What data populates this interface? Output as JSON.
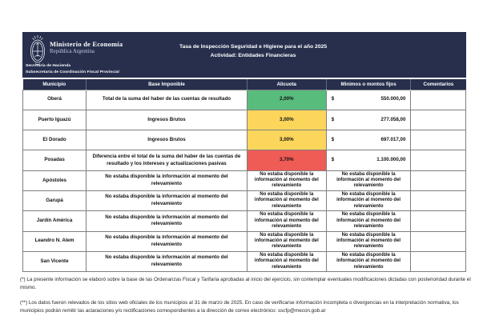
{
  "header": {
    "logo": "argentina-coat-of-arms",
    "ministry": "Ministerio de Economía",
    "country": "República Argentina",
    "secretariat": "Secretaría de Hacienda",
    "subsecretariat": "Subsecretaría de Coordinación Fiscal Provincial",
    "title": "Tasa de Inspección Seguridad e Higiene para el año 2025",
    "subtitle": "Actividad: Entidades Financieras"
  },
  "colors": {
    "navy": "#272F4D",
    "green": "#58BC7C",
    "yellow": "#FBD65B",
    "red": "#EF5B55",
    "border": "#7F7F7F"
  },
  "table": {
    "columns": [
      "Municipio",
      "Base Imponible",
      "Alicuota",
      "Minimos o montos fijos",
      "Comentarios"
    ],
    "not_available": "No estaba disponible la información al momento del relevamiento",
    "rows": [
      {
        "municipio": "Oberá",
        "base": "Total de la suma del haber de las cuentas de resultado",
        "alicuota": "2,00%",
        "alicuota_color": "green",
        "currency": "$",
        "monto": "550.000,00",
        "comentarios": ""
      },
      {
        "municipio": "Puerto Iguazú",
        "base": "Ingresos Brutos",
        "alicuota": "3,00%",
        "alicuota_color": "yellow",
        "currency": "$",
        "monto": "277.058,00",
        "comentarios": ""
      },
      {
        "municipio": "El Dorado",
        "base": "Ingresos Brutos",
        "alicuota": "3,00%",
        "alicuota_color": "yellow",
        "currency": "$",
        "monto": "697.017,00",
        "comentarios": ""
      },
      {
        "municipio": "Posadas",
        "base": "Diferencia entre el total de la suma del haber de las cuentas de resultado y los intereses y actualizaciones pasivas",
        "alicuota": "3,70%",
        "alicuota_color": "red",
        "currency": "$",
        "monto": "1.100.000,00",
        "comentarios": ""
      },
      {
        "municipio": "Apóstoles",
        "na": true,
        "comentarios": ""
      },
      {
        "municipio": "Garupá",
        "na": true,
        "comentarios": ""
      },
      {
        "municipio": "Jardín América",
        "na": true,
        "comentarios": ""
      },
      {
        "municipio": "Leandro N. Alem",
        "na": true,
        "comentarios": ""
      },
      {
        "municipio": "San Vicente",
        "na": true,
        "comentarios": ""
      }
    ]
  },
  "footnotes": [
    "(*) La presente información se elaboró sobre la base de las Ordenanzas Fiscal y Tarifaria aprobadas al inicio del ejercicio, sin contemplar eventuales modificaciones dictadas con posterioridad durante el mismo.",
    "(**) Los datos fueron relevados de los sitios web oficiales de los municipios al 31 de marzo de 2025. En caso de verificarse información incompleta o divergencias en la interpretación normativa, los municipios podrán remitir las aclaraciones y/o rectificaciones correspondientes a la dirección de correo electrónico: sscfp@mecon.gob.ar"
  ]
}
